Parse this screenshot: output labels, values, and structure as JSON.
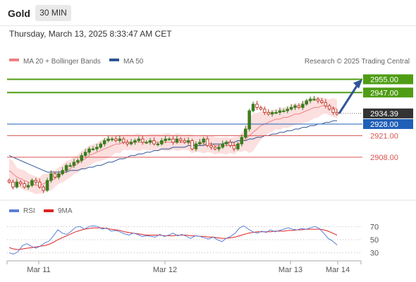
{
  "header": {
    "instrument": "Gold",
    "timeframe": "30 MIN",
    "datetime": "Thursday, March 13, 2025 8:33:47 AM CET"
  },
  "legend": {
    "ma20_bb": "MA 20 + Bollinger Bands",
    "ma50": "MA 50",
    "credit": "Research © 2025 Trading Central",
    "rsi": "RSI",
    "ma9": "9MA"
  },
  "colors": {
    "up_candle": "#3a7d1e",
    "down_candle": "#c0392b",
    "ma20": "#f08080",
    "ma50": "#2f5596",
    "bb_fill": "#fbd9d9",
    "green_level": "#4f9d14",
    "red_level": "#d9534f",
    "blue_level": "#1f5fb8",
    "current_price": "#333333",
    "rsi": "#5b7fd6",
    "rsi_ma": "#e02020",
    "arrow": "#2f5596"
  },
  "levels": [
    {
      "label": "2955.00",
      "value": 2955.0,
      "kind": "resistance-target",
      "style": "green-fill"
    },
    {
      "label": "2947.00",
      "value": 2947.0,
      "kind": "resistance",
      "style": "green-fill"
    },
    {
      "label": "2934.39",
      "value": 2934.39,
      "kind": "last-price",
      "style": "dark-fill"
    },
    {
      "label": "2928.00",
      "value": 2928.0,
      "kind": "pivot",
      "style": "blue-fill"
    },
    {
      "label": "2921.00",
      "value": 2921.0,
      "kind": "support",
      "style": "red-text"
    },
    {
      "label": "2908.00",
      "value": 2908.0,
      "kind": "support",
      "style": "red-text"
    }
  ],
  "chart_data": [
    {
      "type": "candlestick",
      "title": "",
      "xlabel": "",
      "ylabel": "",
      "x_ticks": [
        "Mar 11",
        "Mar 12",
        "Mar 13",
        "Mar 14"
      ],
      "ylim": [
        2888,
        2962
      ],
      "price_path": [
        2893,
        2890,
        2893,
        2892,
        2890,
        2891,
        2894,
        2893,
        2890,
        2888,
        2894,
        2898,
        2896,
        2898,
        2900,
        2903,
        2903,
        2905,
        2906,
        2909,
        2911,
        2913,
        2913,
        2914,
        2916,
        2918,
        2919,
        2919,
        2918,
        2919,
        2917,
        2916,
        2917,
        2918,
        2919,
        2917,
        2917,
        2918,
        2916,
        2916,
        2918,
        2919,
        2919,
        2917,
        2919,
        2918,
        2917,
        2918,
        2913,
        2916,
        2917,
        2919,
        2915,
        2914,
        2913,
        2914,
        2916,
        2917,
        2915,
        2913,
        2916,
        2920,
        2925,
        2936,
        2940,
        2938,
        2937,
        2935,
        2934,
        2935,
        2935,
        2936,
        2936,
        2937,
        2938,
        2939,
        2938,
        2940,
        2942,
        2943,
        2943,
        2942,
        2941,
        2939,
        2937,
        2935,
        2934
      ],
      "ma20": [
        2900,
        2898,
        2896,
        2895,
        2894,
        2893,
        2892,
        2891,
        2891,
        2892,
        2893,
        2894,
        2895,
        2897,
        2898,
        2900,
        2901,
        2903,
        2904,
        2906,
        2907,
        2909,
        2910,
        2911,
        2912,
        2913,
        2914,
        2915,
        2916,
        2916,
        2917,
        2917,
        2917,
        2917,
        2917,
        2917,
        2917,
        2917,
        2917,
        2917,
        2917,
        2917,
        2917,
        2917,
        2917,
        2917,
        2917,
        2917,
        2916,
        2916,
        2916,
        2916,
        2916,
        2916,
        2915,
        2915,
        2915,
        2915,
        2915,
        2915,
        2916,
        2917,
        2919,
        2921,
        2923,
        2925,
        2927,
        2928,
        2929,
        2930,
        2931,
        2931,
        2932,
        2932,
        2933,
        2934,
        2934,
        2935,
        2936,
        2937,
        2938,
        2938,
        2939,
        2939,
        2938,
        2938,
        2937
      ],
      "ma50": [
        2909,
        2908,
        2907,
        2906,
        2905,
        2904,
        2903,
        2902,
        2901,
        2900,
        2899,
        2899,
        2899,
        2899,
        2899,
        2899,
        2900,
        2900,
        2900,
        2901,
        2901,
        2902,
        2902,
        2903,
        2903,
        2904,
        2905,
        2905,
        2906,
        2907,
        2907,
        2908,
        2909,
        2909,
        2910,
        2910,
        2911,
        2911,
        2912,
        2912,
        2913,
        2913,
        2913,
        2914,
        2914,
        2914,
        2914,
        2915,
        2915,
        2915,
        2915,
        2915,
        2916,
        2916,
        2916,
        2916,
        2916,
        2917,
        2917,
        2917,
        2918,
        2918,
        2918,
        2919,
        2919,
        2920,
        2920,
        2921,
        2921,
        2922,
        2922,
        2923,
        2923,
        2924,
        2924,
        2925,
        2925,
        2926,
        2926,
        2927,
        2927,
        2928,
        2928,
        2929,
        2929,
        2930,
        2930
      ],
      "projection": {
        "from": 2934.39,
        "to": 2955.0
      }
    },
    {
      "type": "line",
      "title": "",
      "ylim": [
        20,
        80
      ],
      "y_ticks": [
        70,
        50,
        30
      ],
      "series": [
        {
          "name": "RSI",
          "values": [
            30,
            28,
            32,
            41,
            44,
            40,
            37,
            40,
            45,
            48,
            56,
            65,
            60,
            58,
            63,
            69,
            70,
            66,
            70,
            71,
            70,
            66,
            68,
            63,
            64,
            62,
            59,
            57,
            60,
            58,
            55,
            56,
            55,
            54,
            58,
            55,
            57,
            60,
            56,
            58,
            55,
            52,
            56,
            55,
            53,
            51,
            54,
            50,
            47,
            52,
            55,
            60,
            68,
            71,
            66,
            62,
            60,
            63,
            61,
            65,
            62,
            64,
            66,
            68,
            66,
            65,
            67,
            66,
            68,
            70,
            67,
            60,
            52,
            48,
            42
          ]
        },
        {
          "name": "9MA",
          "values": [
            38,
            36,
            35,
            36,
            37,
            38,
            39,
            40,
            41,
            43,
            46,
            50,
            53,
            56,
            59,
            62,
            64,
            66,
            67,
            68,
            68,
            68,
            67,
            66,
            65,
            64,
            62,
            61,
            60,
            59,
            58,
            57,
            57,
            57,
            57,
            56,
            56,
            56,
            57,
            57,
            57,
            56,
            56,
            55,
            55,
            54,
            54,
            53,
            52,
            52,
            53,
            54,
            56,
            58,
            60,
            61,
            62,
            62,
            62,
            62,
            63,
            63,
            63,
            64,
            64,
            65,
            65,
            66,
            66,
            66,
            66,
            65,
            63,
            60,
            57
          ]
        }
      ],
      "reference_lines": [
        70,
        50,
        30
      ]
    }
  ]
}
